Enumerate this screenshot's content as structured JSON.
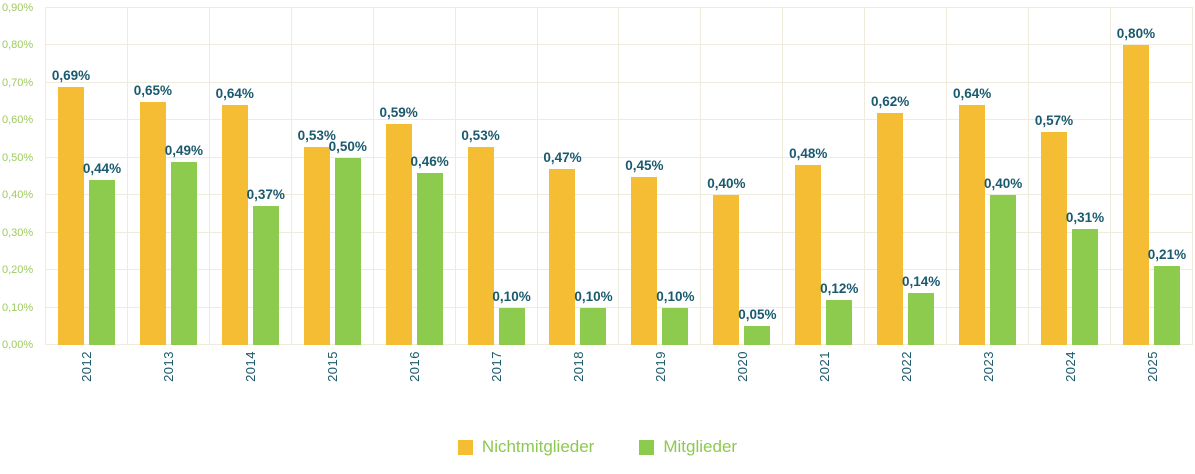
{
  "colors": {
    "background": "#ffffff",
    "gridline": "#efebdd",
    "axis_tick_text": "#9ccb5f",
    "data_label_text": "#1a5a6e",
    "x_label_text": "#1a5a6e",
    "legend_text": "#8cc94f",
    "series_nichtmitglieder": "#f4bd33",
    "series_mitglieder": "#8dcb4f"
  },
  "chart_data": {
    "type": "bar",
    "title": "",
    "categories": [
      "2012",
      "2013",
      "2014",
      "2015",
      "2016",
      "2017",
      "2018",
      "2019",
      "2020",
      "2021",
      "2022",
      "2023",
      "2024",
      "2025"
    ],
    "series": [
      {
        "name": "Nichtmitglieder",
        "color": "#f4bd33",
        "values": [
          0.69,
          0.65,
          0.64,
          0.53,
          0.59,
          0.53,
          0.47,
          0.45,
          0.4,
          0.48,
          0.62,
          0.64,
          0.57,
          0.8
        ],
        "labels": [
          "0,69%",
          "0,65%",
          "0,64%",
          "0,53%",
          "0,59%",
          "0,53%",
          "0,47%",
          "0,45%",
          "0,40%",
          "0,48%",
          "0,62%",
          "0,64%",
          "0,57%",
          "0,80%"
        ]
      },
      {
        "name": "Mitglieder",
        "color": "#8dcb4f",
        "values": [
          0.44,
          0.49,
          0.37,
          0.5,
          0.46,
          0.1,
          0.1,
          0.1,
          0.05,
          0.12,
          0.14,
          0.4,
          0.31,
          0.21
        ],
        "labels": [
          "0,44%",
          "0,49%",
          "0,37%",
          "0,50%",
          "0,46%",
          "0,10%",
          "0,10%",
          "0,10%",
          "0,05%",
          "0,12%",
          "0,14%",
          "0,40%",
          "0,31%",
          "0,21%"
        ]
      }
    ],
    "y_tick_values": [
      0.9,
      0.8,
      0.7,
      0.6,
      0.5,
      0.4,
      0.3,
      0.2,
      0.1,
      0.0
    ],
    "y_tick_labels": [
      "0,90%",
      "0,80%",
      "0,70%",
      "0,60%",
      "0,50%",
      "0,40%",
      "0,30%",
      "0,20%",
      "0,10%",
      "0,00%"
    ],
    "ylim": [
      0,
      0.9
    ],
    "grid": true,
    "legend_position": "bottom",
    "number_format": "german-comma-percent"
  }
}
